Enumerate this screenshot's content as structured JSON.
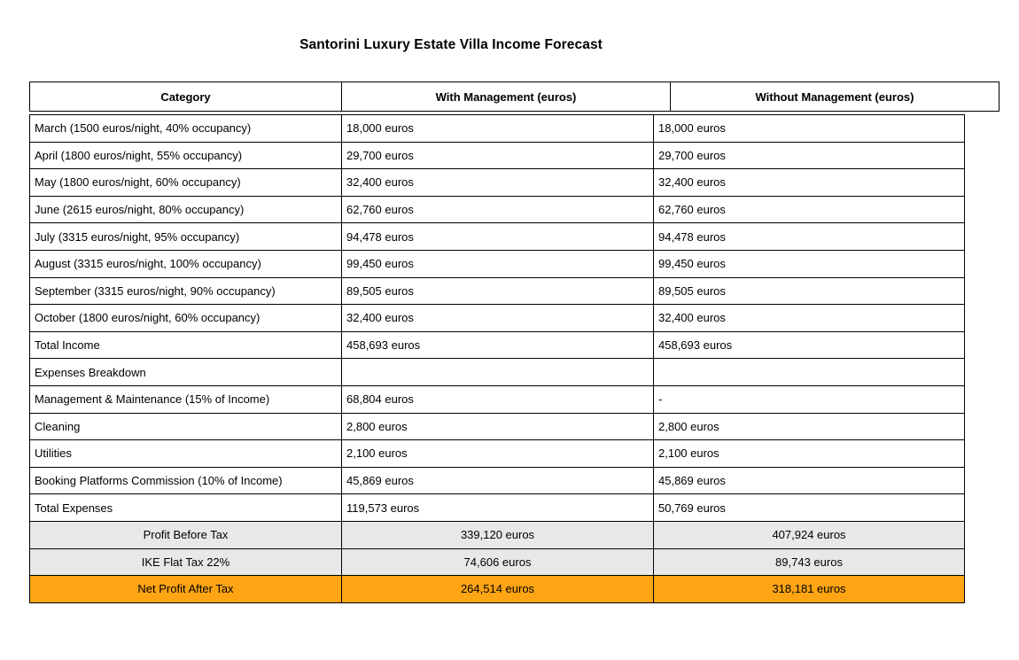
{
  "title": "Santorini Luxury Estate Villa Income Forecast",
  "colors": {
    "summary_bg": "#e8e8e8",
    "highlight_bg": "#ffa513",
    "border": "#000000"
  },
  "table": {
    "columns": [
      "Category",
      "With Management (euros)",
      "Without Management (euros)"
    ],
    "rows": [
      {
        "category": "March (1500 euros/night, 40% occupancy)",
        "with": "18,000 euros",
        "without": "18,000 euros",
        "style": "normal"
      },
      {
        "category": "April (1800 euros/night, 55% occupancy)",
        "with": "29,700 euros",
        "without": "29,700 euros",
        "style": "normal"
      },
      {
        "category": "May (1800 euros/night, 60% occupancy)",
        "with": "32,400 euros",
        "without": "32,400 euros",
        "style": "normal"
      },
      {
        "category": "June (2615 euros/night, 80% occupancy)",
        "with": "62,760 euros",
        "without": "62,760 euros",
        "style": "normal"
      },
      {
        "category": "July (3315 euros/night, 95% occupancy)",
        "with": "94,478 euros",
        "without": "94,478 euros",
        "style": "normal"
      },
      {
        "category": "August (3315 euros/night, 100% occupancy)",
        "with": "99,450 euros",
        "without": "99,450 euros",
        "style": "normal"
      },
      {
        "category": "September (3315 euros/night, 90% occupancy)",
        "with": "89,505 euros",
        "without": "89,505 euros",
        "style": "normal"
      },
      {
        "category": "October (1800 euros/night, 60% occupancy)",
        "with": "32,400 euros",
        "without": "32,400 euros",
        "style": "normal"
      },
      {
        "category": "Total Income",
        "with": "458,693 euros",
        "without": "458,693 euros",
        "style": "normal"
      },
      {
        "category": "Expenses Breakdown",
        "with": "",
        "without": "",
        "style": "normal"
      },
      {
        "category": "Management & Maintenance (15% of Income)",
        "with": "68,804 euros",
        "without": "-",
        "style": "normal"
      },
      {
        "category": "Cleaning",
        "with": "2,800 euros",
        "without": "2,800 euros",
        "style": "normal"
      },
      {
        "category": "Utilities",
        "with": "2,100 euros",
        "without": "2,100 euros",
        "style": "normal"
      },
      {
        "category": "Booking Platforms Commission (10% of Income)",
        "with": "45,869 euros",
        "without": "45,869 euros",
        "style": "normal"
      },
      {
        "category": "Total Expenses",
        "with": "119,573 euros",
        "without": "50,769 euros",
        "style": "normal"
      },
      {
        "category": "Profit Before Tax",
        "with": "339,120 euros",
        "without": "407,924 euros",
        "style": "summary"
      },
      {
        "category": "IKE Flat Tax 22%",
        "with": "74,606 euros",
        "without": "89,743 euros",
        "style": "summary"
      },
      {
        "category": "Net Profit After Tax",
        "with": "264,514 euros",
        "without": "318,181 euros",
        "style": "highlight"
      }
    ]
  }
}
